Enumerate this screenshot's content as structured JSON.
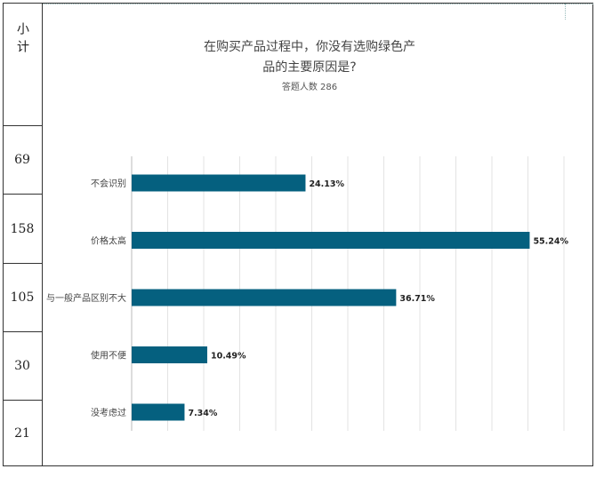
{
  "table": {
    "header": "小计",
    "counts": [
      "69",
      "158",
      "105",
      "30",
      "21"
    ]
  },
  "chart_data": {
    "type": "bar",
    "orientation": "horizontal",
    "title_lines": [
      "在购买产品过程中，你没有选购绿色产",
      "品的主要原因是?"
    ],
    "subtitle": "答题人数 286",
    "categories": [
      "不会识别",
      "价格太高",
      "与一般产品区别不大",
      "使用不便",
      "没考虑过"
    ],
    "values": [
      24.13,
      55.24,
      36.71,
      10.49,
      7.34
    ],
    "value_labels": [
      "24.13%",
      "55.24%",
      "36.71%",
      "10.49%",
      "7.34%"
    ],
    "xlim": [
      0,
      60
    ],
    "bar_color": "#05607f",
    "grid": true
  }
}
